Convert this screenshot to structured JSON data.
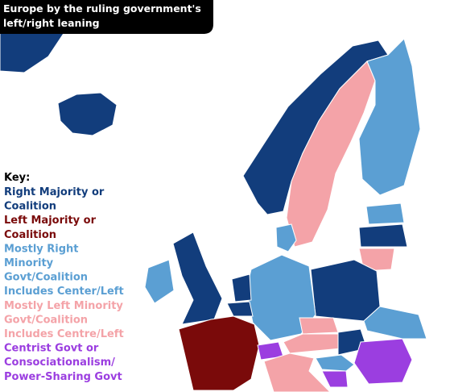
{
  "title": {
    "lines": [
      "Europe by the ruling government's",
      "left/right leaning"
    ]
  },
  "key": {
    "heading": "Key:",
    "entries": [
      {
        "lines": [
          "Right Majority or",
          "Coalition"
        ],
        "color": "#123d7c"
      },
      {
        "lines": [
          "Left Majority or",
          "Coalition"
        ],
        "color": "#7a0a0a"
      },
      {
        "lines": [
          "Mostly Right",
          "Minority",
          "Govt/Coalition",
          "Includes Center/Left"
        ],
        "color": "#5b9fd3"
      },
      {
        "lines": [
          "Mostly Left Minority",
          "Govt/Coalition",
          "Includes Centre/Left"
        ],
        "color": "#f4a3a8"
      },
      {
        "lines": [
          "Centrist Govt or",
          "Consociationalism/",
          "Power-Sharing Govt"
        ],
        "color": "#9b3ee0"
      }
    ]
  }
}
